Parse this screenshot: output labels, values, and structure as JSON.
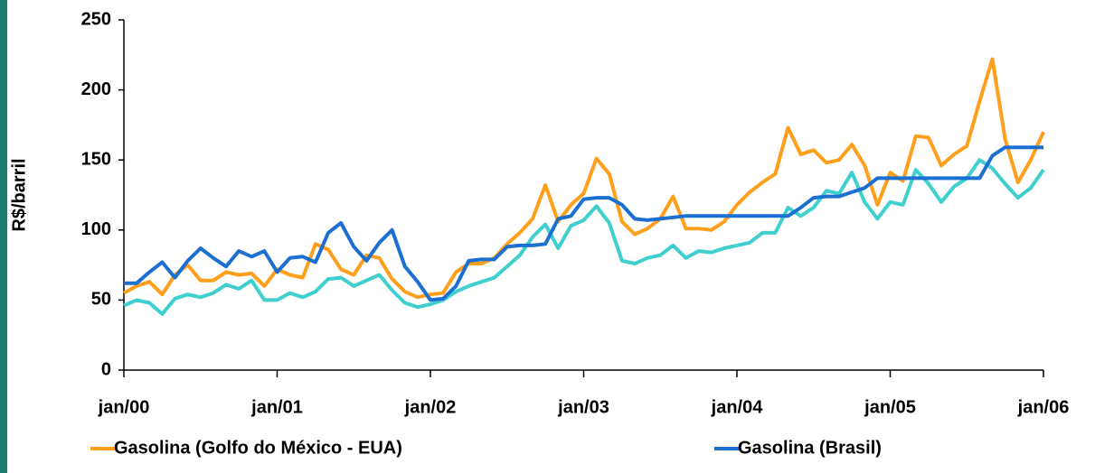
{
  "chart_data": {
    "type": "line",
    "y_label": "R$/barril",
    "categories": [
      "jan/00",
      null,
      null,
      null,
      null,
      null,
      null,
      null,
      null,
      null,
      null,
      null,
      "jan/01",
      null,
      null,
      null,
      null,
      null,
      null,
      null,
      null,
      null,
      null,
      null,
      "jan/02",
      null,
      null,
      null,
      null,
      null,
      null,
      null,
      null,
      null,
      null,
      null,
      "jan/03",
      null,
      null,
      null,
      null,
      null,
      null,
      null,
      null,
      null,
      null,
      null,
      "jan/04",
      null,
      null,
      null,
      null,
      null,
      null,
      null,
      null,
      null,
      null,
      null,
      "jan/05",
      null,
      null,
      null,
      null,
      null,
      null,
      null,
      null,
      null,
      null,
      null,
      "jan/06"
    ],
    "series": [
      {
        "color": "#3fcfcf",
        "values": [
          46,
          50,
          48,
          40,
          51,
          54,
          52,
          55,
          61,
          58,
          64,
          50,
          50,
          55,
          52,
          56,
          65,
          66,
          60,
          64,
          68,
          57,
          48,
          45,
          47,
          50,
          56,
          60,
          63,
          66,
          74,
          82,
          95,
          104,
          87,
          103,
          107,
          117,
          105,
          78,
          76,
          80,
          82,
          89,
          80,
          85,
          84,
          87,
          89,
          91,
          98,
          98,
          116,
          110,
          116,
          128,
          126,
          141,
          120,
          108,
          120,
          118,
          143,
          133,
          120,
          131,
          137,
          150,
          144,
          133,
          123,
          130,
          143
        ]
      },
      {
        "name": "Gasolina (Golfo do México - EUA)",
        "color": "#ff9f1c",
        "values": [
          55,
          60,
          63,
          54,
          68,
          75,
          64,
          64,
          70,
          68,
          69,
          60,
          72,
          68,
          66,
          90,
          86,
          72,
          68,
          82,
          80,
          65,
          56,
          52,
          54,
          55,
          70,
          76,
          76,
          80,
          90,
          98,
          108,
          132,
          106,
          118,
          126,
          151,
          140,
          106,
          97,
          101,
          108,
          124,
          101,
          101,
          100,
          106,
          118,
          127,
          134,
          140,
          173,
          154,
          157,
          148,
          150,
          161,
          146,
          118,
          141,
          135,
          167,
          166,
          146,
          154,
          160,
          192,
          222,
          165,
          134,
          150,
          170
        ]
      },
      {
        "name": "Gasolina (Brasil)",
        "color": "#1a6fd0",
        "values": [
          62,
          62,
          70,
          77,
          66,
          78,
          87,
          80,
          74,
          85,
          81,
          85,
          70,
          80,
          81,
          77,
          98,
          105,
          88,
          78,
          91,
          100,
          74,
          63,
          50,
          51,
          60,
          78,
          79,
          79,
          88,
          89,
          89,
          90,
          108,
          110,
          122,
          123,
          123,
          118,
          108,
          107,
          108,
          109,
          110,
          110,
          110,
          110,
          110,
          110,
          110,
          110,
          110,
          116,
          123,
          124,
          124,
          127,
          130,
          137,
          137,
          137,
          137,
          137,
          137,
          137,
          137,
          137,
          153,
          159,
          159,
          159,
          159
        ]
      }
    ],
    "ylim": [
      0,
      250
    ],
    "yticks": [
      0,
      50,
      100,
      150,
      200,
      250
    ],
    "grid": false
  }
}
